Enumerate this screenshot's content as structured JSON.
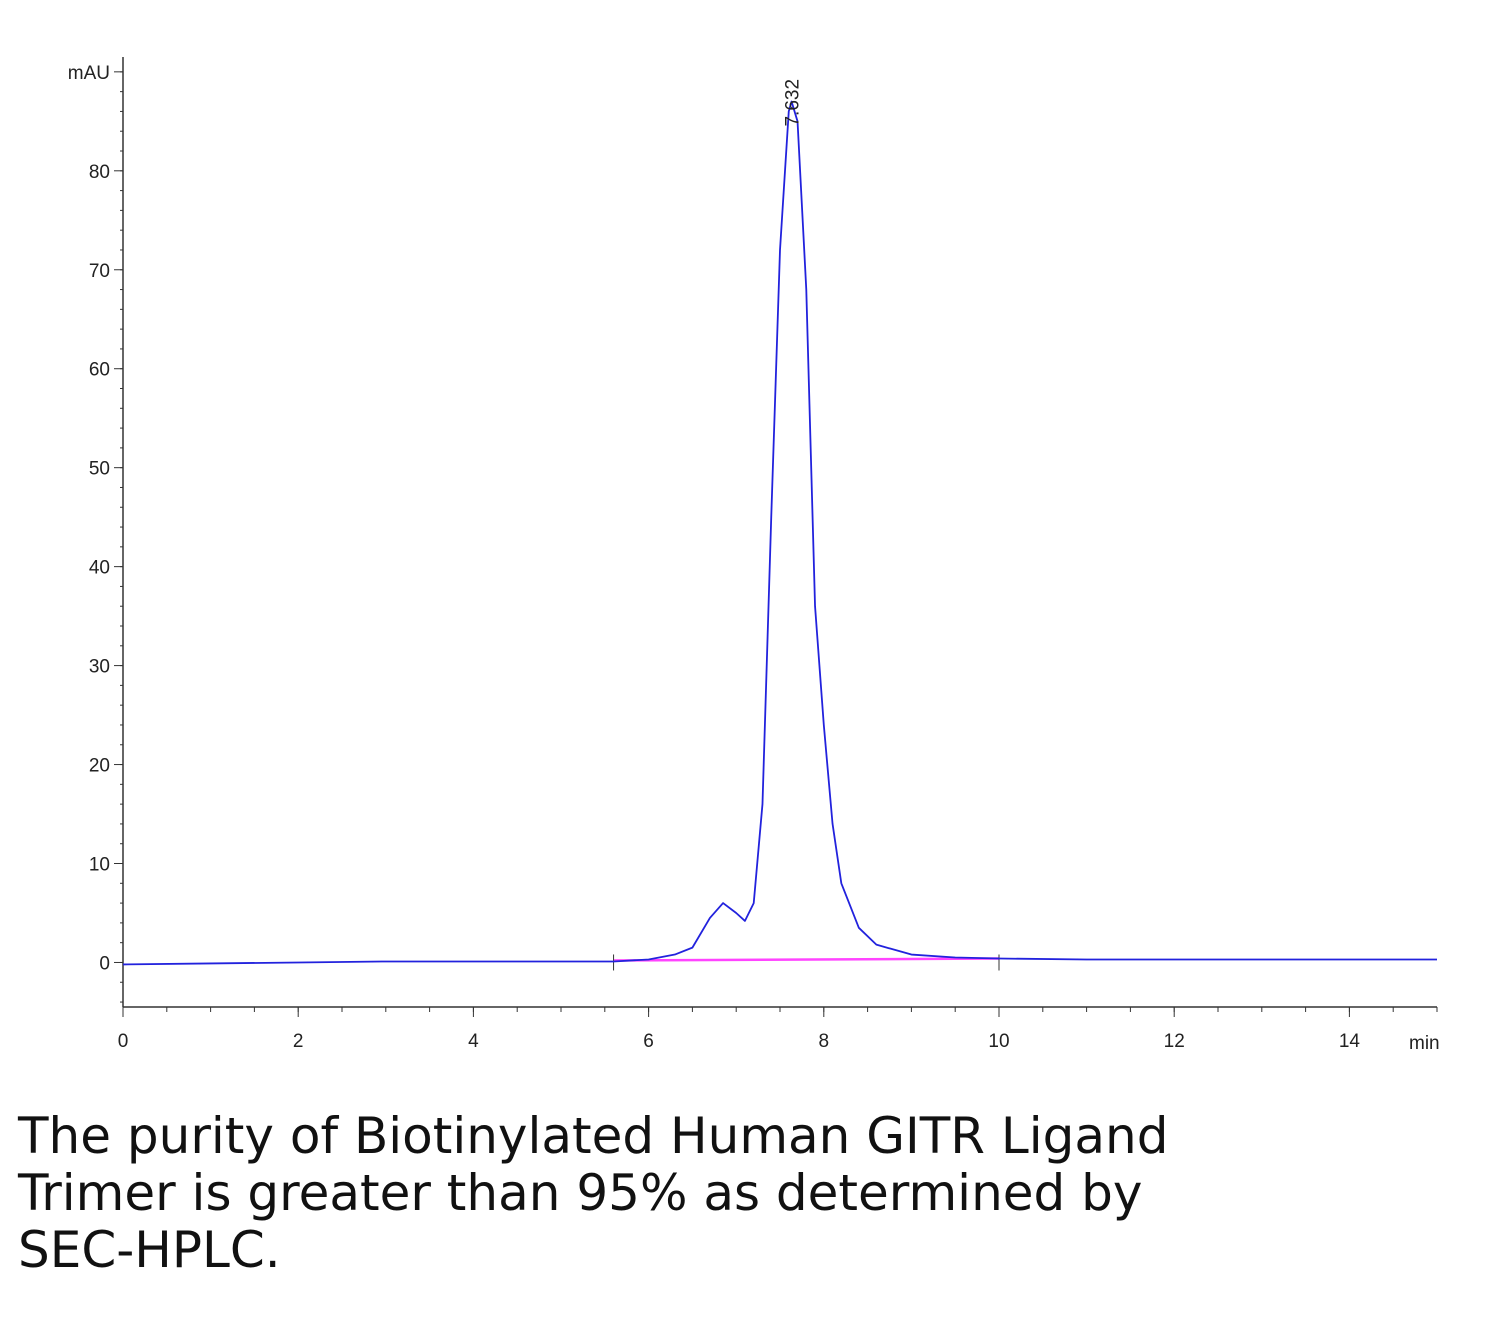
{
  "chart_data": {
    "type": "line",
    "x": [
      0,
      1,
      2,
      3,
      4,
      5,
      5.6,
      6,
      6.3,
      6.5,
      6.7,
      6.85,
      7.0,
      7.1,
      7.2,
      7.3,
      7.4,
      7.5,
      7.6,
      7.632,
      7.7,
      7.8,
      7.9,
      8.0,
      8.1,
      8.2,
      8.4,
      8.6,
      9,
      9.5,
      10,
      11,
      12,
      13,
      14,
      15
    ],
    "series": [
      {
        "color": "#2222dd",
        "values": [
          -0.2,
          -0.1,
          0,
          0.1,
          0.1,
          0.1,
          0.1,
          0.3,
          0.8,
          1.5,
          4.5,
          6,
          5,
          4.2,
          6,
          16,
          45,
          72,
          86,
          87,
          85,
          68,
          36,
          24,
          14,
          8,
          3.5,
          1.8,
          0.8,
          0.5,
          0.4,
          0.3,
          0.3,
          0.3,
          0.3,
          0.3
        ]
      }
    ],
    "baseline": {
      "color": "#ff44ff",
      "x": [
        5.6,
        10
      ],
      "values": [
        0.2,
        0.4
      ]
    },
    "peak_label": {
      "text": "7.632",
      "x": 7.632,
      "y": 87
    },
    "x_unit": "min",
    "xlim": [
      0,
      15
    ],
    "xticks": [
      0,
      2,
      4,
      6,
      8,
      10,
      12,
      14
    ],
    "ylim": [
      -4.5,
      91.5
    ],
    "yticks": [
      0,
      10,
      20,
      30,
      40,
      50,
      60,
      70,
      80,
      {
        "value": 90,
        "label": "mAU"
      }
    ]
  },
  "caption": [
    "The purity of Biotinylated Human GITR Ligand",
    "Trimer is greater than 95% as determined by",
    "SEC-HPLC."
  ]
}
